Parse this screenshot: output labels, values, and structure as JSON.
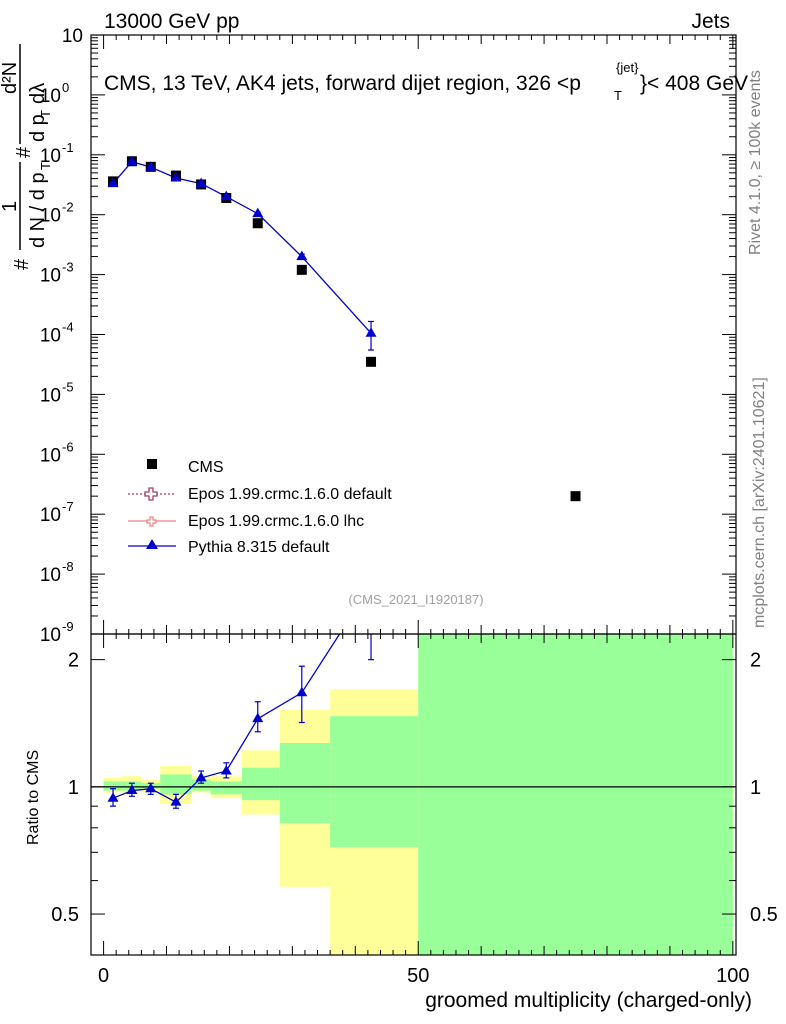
{
  "header": {
    "left": "13000 GeV pp",
    "right": "Jets",
    "title_main": "CMS, 13 TeV, AK4 jets, forward dijet region, 326 <p",
    "title_sup": "{jet}",
    "title_sub": "T",
    "title_end": "}< 408 GeV",
    "analysis_id": "(CMS_2021_I1920187)"
  },
  "side_text": {
    "rivet": "Rivet 4.1.0, ≥ 100k events",
    "mcplots": "mcplots.cern.ch [arXiv:2401.10621]"
  },
  "ylabel_top": {
    "frac_num": "1",
    "frac_den": "d N / d p",
    "frac_den_sub": "T",
    "frac_den_hash": "#",
    "d2n": "d²N",
    "d2n_den": "d p",
    "d2n_den_sub": "T",
    "d2n_den_tail": "dλ",
    "hash": "#"
  },
  "ylabel_bottom": "Ratio to CMS",
  "xlabel": "groomed multiplicity (charged-only)",
  "legend": [
    {
      "label": "CMS",
      "marker": "square",
      "color": "#000000"
    },
    {
      "label": "Epos 1.99.crmc.1.6.0 default",
      "marker": "open-cross",
      "color": "#a0405a"
    },
    {
      "label": "Epos 1.99.crmc.1.6.0 lhc",
      "marker": "open-cross",
      "color": "#f08080"
    },
    {
      "label": "Pythia 8.315 default",
      "marker": "triangle",
      "color": "#0000cc"
    }
  ],
  "chart_data": [
    {
      "type": "scatter",
      "panel": "main",
      "yscale": "log",
      "xlim": [
        -2,
        100.5
      ],
      "ylim": [
        1e-09,
        10
      ],
      "y_tick_labels": [
        "10",
        "10⁻¹",
        "10⁻²",
        "10⁻³",
        "10⁻⁴",
        "10⁻⁵",
        "10⁻⁶",
        "10⁻⁷",
        "10⁻⁸",
        "10⁻⁹"
      ],
      "series": [
        {
          "name": "CMS",
          "x": [
            1.5,
            4.5,
            7.5,
            11.5,
            15.5,
            19.5,
            24.5,
            31.5,
            42.5,
            75
          ],
          "y": [
            0.036,
            0.078,
            0.063,
            0.045,
            0.032,
            0.019,
            0.0072,
            0.0012,
            3.5e-05,
            2e-07
          ]
        },
        {
          "name": "Pythia 8.315 default",
          "x": [
            1.5,
            4.5,
            7.5,
            11.5,
            15.5,
            19.5,
            24.5,
            31.5,
            42.5
          ],
          "y": [
            0.033,
            0.077,
            0.062,
            0.041,
            0.033,
            0.02,
            0.0104,
            0.002,
            0.000105
          ],
          "yerr_low": [
            0.031,
            0.074,
            0.06,
            0.039,
            0.032,
            0.019,
            0.0097,
            0.0018,
            5.5e-05
          ],
          "yerr_high": [
            0.035,
            0.08,
            0.064,
            0.043,
            0.034,
            0.021,
            0.011,
            0.0022,
            0.000165
          ]
        }
      ]
    },
    {
      "type": "line",
      "panel": "ratio",
      "xlabel": "groomed multiplicity (charged-only)",
      "ylabel": "Ratio to CMS",
      "xlim": [
        -2,
        100.5
      ],
      "ylim": [
        0.4,
        2.3
      ],
      "x_ticks": [
        0,
        50,
        100
      ],
      "y_ticks": [
        0.5,
        1,
        2
      ],
      "bands": [
        {
          "x0": 0,
          "x1": 3,
          "yellow": [
            0.97,
            1.05
          ],
          "green": [
            0.98,
            1.03
          ]
        },
        {
          "x0": 3,
          "x1": 6,
          "yellow": [
            0.97,
            1.06
          ],
          "green": [
            0.98,
            1.03
          ]
        },
        {
          "x0": 6,
          "x1": 9,
          "yellow": [
            0.97,
            1.04
          ],
          "green": [
            0.99,
            1.02
          ]
        },
        {
          "x0": 9,
          "x1": 14,
          "yellow": [
            0.91,
            1.12
          ],
          "green": [
            0.96,
            1.07
          ]
        },
        {
          "x0": 14,
          "x1": 17,
          "yellow": [
            0.97,
            1.06
          ],
          "green": [
            0.98,
            1.04
          ]
        },
        {
          "x0": 17,
          "x1": 22,
          "yellow": [
            0.94,
            1.06
          ],
          "green": [
            0.96,
            1.03
          ]
        },
        {
          "x0": 22,
          "x1": 28,
          "yellow": [
            0.86,
            1.22
          ],
          "green": [
            0.93,
            1.11
          ]
        },
        {
          "x0": 28,
          "x1": 36,
          "yellow": [
            0.58,
            1.52
          ],
          "green": [
            0.82,
            1.27
          ]
        },
        {
          "x0": 36,
          "x1": 50,
          "yellow": [
            0.35,
            1.7
          ],
          "green": [
            0.72,
            1.47
          ]
        },
        {
          "x0": 50,
          "x1": 100,
          "yellow": [
            0.35,
            2.5
          ],
          "green": [
            0.35,
            2.5
          ]
        }
      ],
      "series": [
        {
          "name": "Pythia 8.315 default",
          "x": [
            1.5,
            4.5,
            7.5,
            11.5,
            15.5,
            19.5,
            24.5,
            31.5,
            42.5
          ],
          "y": [
            0.94,
            0.98,
            0.99,
            0.92,
            1.05,
            1.09,
            1.45,
            1.67,
            3.0
          ],
          "yerr_low": [
            0.9,
            0.95,
            0.96,
            0.89,
            1.02,
            1.05,
            1.35,
            1.42,
            2.0
          ],
          "yerr_high": [
            0.99,
            1.02,
            1.02,
            0.96,
            1.09,
            1.14,
            1.59,
            1.93,
            4.5
          ]
        }
      ]
    }
  ]
}
